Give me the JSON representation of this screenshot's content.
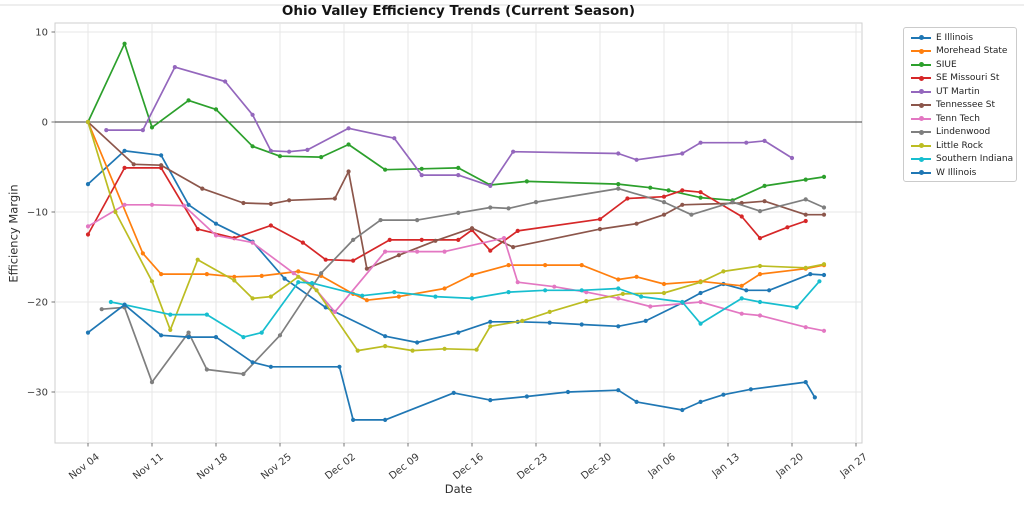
{
  "chart_data": {
    "type": "line",
    "title": "Ohio Valley Efficiency Trends (Current Season)",
    "xlabel": "Date",
    "ylabel": "Efficiency Margin",
    "grid": true,
    "zero_line": true,
    "legend_position": "outside-right",
    "x_axis": {
      "unit": "days_since_Nov_04",
      "tick_days": [
        0,
        7,
        14,
        21,
        28,
        35,
        42,
        49,
        56,
        63,
        70,
        77,
        84
      ],
      "tick_labels": [
        "Nov 04",
        "Nov 11",
        "Nov 18",
        "Nov 25",
        "Dec 02",
        "Dec 09",
        "Dec 16",
        "Dec 23",
        "Dec 30",
        "Jan 06",
        "Jan 13",
        "Jan 20",
        "Jan 27"
      ],
      "range_days": [
        -3.6,
        84.8
      ]
    },
    "y_axis": {
      "ticks": [
        10,
        0,
        -10,
        -20,
        -30
      ],
      "tick_labels": [
        "10",
        "0",
        "−10",
        "−20",
        "−30"
      ],
      "range": [
        -35.7,
        11
      ]
    },
    "series": [
      {
        "name": "E Illinois",
        "color": "#1f77b4",
        "points": [
          [
            0,
            -6.9
          ],
          [
            4,
            -3.2
          ],
          [
            8,
            -3.7
          ],
          [
            11,
            -9.2
          ],
          [
            14,
            -11.3
          ],
          [
            18,
            -13.3
          ],
          [
            21.5,
            -17.4
          ],
          [
            26,
            -20.6
          ],
          [
            32.5,
            -23.8
          ],
          [
            36,
            -24.5
          ],
          [
            40.5,
            -23.4
          ],
          [
            44,
            -22.2
          ],
          [
            47,
            -22.2
          ],
          [
            50.5,
            -22.3
          ],
          [
            54,
            -22.5
          ],
          [
            58,
            -22.7
          ],
          [
            61,
            -22.1
          ],
          [
            65,
            -20.1
          ],
          [
            67,
            -19.0
          ],
          [
            69.5,
            -18.0
          ],
          [
            72,
            -18.7
          ],
          [
            74.5,
            -18.7
          ],
          [
            79,
            -16.9
          ],
          [
            80.5,
            -17.0
          ]
        ]
      },
      {
        "name": "Morehead State",
        "color": "#ff7f0e",
        "points": [
          [
            0,
            0
          ],
          [
            6,
            -14.6
          ],
          [
            8,
            -16.9
          ],
          [
            13,
            -16.9
          ],
          [
            16,
            -17.2
          ],
          [
            19,
            -17.1
          ],
          [
            23,
            -16.6
          ],
          [
            25.5,
            -17.1
          ],
          [
            29,
            -19.1
          ],
          [
            30.5,
            -19.8
          ],
          [
            34,
            -19.4
          ],
          [
            39,
            -18.5
          ],
          [
            42,
            -17.0
          ],
          [
            46,
            -15.9
          ],
          [
            50,
            -15.9
          ],
          [
            54,
            -15.9
          ],
          [
            58,
            -17.5
          ],
          [
            60,
            -17.2
          ],
          [
            63,
            -18.0
          ],
          [
            67,
            -17.7
          ],
          [
            71.5,
            -18.2
          ],
          [
            73.5,
            -16.9
          ],
          [
            78.5,
            -16.3
          ],
          [
            80.5,
            -15.9
          ]
        ]
      },
      {
        "name": "SIUE",
        "color": "#2ca02c",
        "points": [
          [
            0,
            0
          ],
          [
            4,
            8.7
          ],
          [
            7,
            -0.6
          ],
          [
            11,
            2.4
          ],
          [
            14,
            1.4
          ],
          [
            18,
            -2.7
          ],
          [
            21,
            -3.8
          ],
          [
            25.5,
            -3.9
          ],
          [
            28.5,
            -2.5
          ],
          [
            32.5,
            -5.3
          ],
          [
            36.5,
            -5.2
          ],
          [
            40.5,
            -5.1
          ],
          [
            44,
            -7.0
          ],
          [
            48,
            -6.6
          ],
          [
            58,
            -6.9
          ],
          [
            61.5,
            -7.3
          ],
          [
            63.5,
            -7.6
          ],
          [
            67,
            -8.4
          ],
          [
            70.5,
            -8.7
          ],
          [
            74,
            -7.1
          ],
          [
            78.5,
            -6.4
          ],
          [
            80.5,
            -6.1
          ]
        ]
      },
      {
        "name": "SE Missouri St",
        "color": "#d62728",
        "points": [
          [
            0,
            -12.5
          ],
          [
            4,
            -5.1
          ],
          [
            8,
            -5.1
          ],
          [
            12,
            -11.9
          ],
          [
            16,
            -12.9
          ],
          [
            20,
            -11.5
          ],
          [
            23.5,
            -13.4
          ],
          [
            26,
            -15.3
          ],
          [
            29,
            -15.4
          ],
          [
            33,
            -13.1
          ],
          [
            36.5,
            -13.1
          ],
          [
            40.5,
            -13.1
          ],
          [
            42,
            -12.0
          ],
          [
            44,
            -14.3
          ],
          [
            47,
            -12.1
          ],
          [
            56,
            -10.8
          ],
          [
            59,
            -8.5
          ],
          [
            63,
            -8.3
          ],
          [
            65,
            -7.6
          ],
          [
            67,
            -7.8
          ],
          [
            71.5,
            -10.5
          ],
          [
            73.5,
            -12.9
          ],
          [
            76.5,
            -11.7
          ],
          [
            78.5,
            -11.0
          ]
        ]
      },
      {
        "name": "UT Martin",
        "color": "#9467bd",
        "points": [
          [
            2,
            -0.9
          ],
          [
            6,
            -0.9
          ],
          [
            9.5,
            6.1
          ],
          [
            15,
            4.5
          ],
          [
            18,
            0.8
          ],
          [
            20,
            -3.2
          ],
          [
            22,
            -3.3
          ],
          [
            24,
            -3.1
          ],
          [
            28.5,
            -0.7
          ],
          [
            33.5,
            -1.8
          ],
          [
            36.5,
            -5.9
          ],
          [
            40.5,
            -5.9
          ],
          [
            44,
            -7.1
          ],
          [
            46.5,
            -3.3
          ],
          [
            58,
            -3.5
          ],
          [
            60,
            -4.2
          ],
          [
            65,
            -3.5
          ],
          [
            67,
            -2.3
          ],
          [
            72,
            -2.3
          ],
          [
            74,
            -2.1
          ],
          [
            77,
            -4.0
          ]
        ]
      },
      {
        "name": "Tennessee St",
        "color": "#8c564b",
        "points": [
          [
            0,
            0
          ],
          [
            5,
            -4.7
          ],
          [
            8,
            -4.8
          ],
          [
            12.5,
            -7.4
          ],
          [
            17,
            -9.0
          ],
          [
            20,
            -9.1
          ],
          [
            22,
            -8.7
          ],
          [
            27,
            -8.5
          ],
          [
            28.5,
            -5.5
          ],
          [
            30.5,
            -16.3
          ],
          [
            34,
            -14.8
          ],
          [
            38,
            -13.2
          ],
          [
            42,
            -11.8
          ],
          [
            46.5,
            -13.9
          ],
          [
            56,
            -11.9
          ],
          [
            60,
            -11.3
          ],
          [
            63,
            -10.3
          ],
          [
            65,
            -9.2
          ],
          [
            71.5,
            -9.0
          ],
          [
            74,
            -8.8
          ],
          [
            78.5,
            -10.3
          ],
          [
            80.5,
            -10.3
          ]
        ]
      },
      {
        "name": "Tenn Tech",
        "color": "#e377c2",
        "points": [
          [
            0,
            -11.6
          ],
          [
            4,
            -9.2
          ],
          [
            7,
            -9.2
          ],
          [
            10.5,
            -9.3
          ],
          [
            14,
            -12.6
          ],
          [
            18,
            -13.4
          ],
          [
            22.5,
            -16.8
          ],
          [
            24.5,
            -18.1
          ],
          [
            27,
            -21.1
          ],
          [
            32.5,
            -14.4
          ],
          [
            36,
            -14.4
          ],
          [
            39,
            -14.4
          ],
          [
            45.5,
            -12.9
          ],
          [
            47,
            -17.8
          ],
          [
            51,
            -18.3
          ],
          [
            54.5,
            -18.9
          ],
          [
            58,
            -19.6
          ],
          [
            61.5,
            -20.5
          ],
          [
            67,
            -20.0
          ],
          [
            71.5,
            -21.3
          ],
          [
            73.5,
            -21.5
          ],
          [
            78.5,
            -22.8
          ],
          [
            80.5,
            -23.2
          ]
        ]
      },
      {
        "name": "Lindenwood",
        "color": "#7f7f7f",
        "points": [
          [
            1.5,
            -20.8
          ],
          [
            4,
            -20.6
          ],
          [
            7,
            -28.9
          ],
          [
            11,
            -23.4
          ],
          [
            13,
            -27.5
          ],
          [
            17,
            -28.0
          ],
          [
            21,
            -23.7
          ],
          [
            25.5,
            -16.8
          ],
          [
            29,
            -13.1
          ],
          [
            32,
            -10.9
          ],
          [
            36,
            -10.9
          ],
          [
            40.5,
            -10.1
          ],
          [
            44,
            -9.5
          ],
          [
            46,
            -9.6
          ],
          [
            49,
            -8.9
          ],
          [
            58,
            -7.4
          ],
          [
            63,
            -8.9
          ],
          [
            66,
            -10.3
          ],
          [
            70.5,
            -8.9
          ],
          [
            73.5,
            -9.9
          ],
          [
            78.5,
            -8.6
          ],
          [
            80.5,
            -9.5
          ]
        ]
      },
      {
        "name": "Little Rock",
        "color": "#bcbd22",
        "points": [
          [
            0,
            0
          ],
          [
            3,
            -10.0
          ],
          [
            7,
            -17.7
          ],
          [
            9,
            -23.1
          ],
          [
            12,
            -15.3
          ],
          [
            16,
            -17.6
          ],
          [
            18,
            -19.6
          ],
          [
            20,
            -19.4
          ],
          [
            23,
            -17.2
          ],
          [
            25,
            -18.7
          ],
          [
            29.5,
            -25.4
          ],
          [
            32.5,
            -24.9
          ],
          [
            35.5,
            -25.4
          ],
          [
            39,
            -25.2
          ],
          [
            42.5,
            -25.3
          ],
          [
            44,
            -22.7
          ],
          [
            47.5,
            -22.1
          ],
          [
            50.5,
            -21.1
          ],
          [
            54.5,
            -19.9
          ],
          [
            58.5,
            -19.1
          ],
          [
            63,
            -19.0
          ],
          [
            67,
            -17.8
          ],
          [
            69.5,
            -16.6
          ],
          [
            73.5,
            -16.0
          ],
          [
            78.5,
            -16.2
          ],
          [
            80.5,
            -15.8
          ]
        ]
      },
      {
        "name": "Southern Indiana",
        "color": "#17becf",
        "points": [
          [
            2.5,
            -20.0
          ],
          [
            4,
            -20.3
          ],
          [
            9,
            -21.4
          ],
          [
            13,
            -21.4
          ],
          [
            17,
            -23.9
          ],
          [
            19,
            -23.4
          ],
          [
            23,
            -17.8
          ],
          [
            24.5,
            -17.9
          ],
          [
            30,
            -19.3
          ],
          [
            33.5,
            -18.9
          ],
          [
            38,
            -19.4
          ],
          [
            42,
            -19.6
          ],
          [
            46,
            -18.9
          ],
          [
            50,
            -18.7
          ],
          [
            54,
            -18.7
          ],
          [
            58,
            -18.5
          ],
          [
            60.5,
            -19.4
          ],
          [
            65,
            -20.0
          ],
          [
            67,
            -22.4
          ],
          [
            71.5,
            -19.6
          ],
          [
            73.5,
            -20.0
          ],
          [
            77.5,
            -20.6
          ],
          [
            80,
            -17.7
          ]
        ]
      },
      {
        "name": "W Illinois",
        "color": "#1f77b4",
        "points": [
          [
            0,
            -23.4
          ],
          [
            4,
            -20.3
          ],
          [
            8,
            -23.7
          ],
          [
            11,
            -23.9
          ],
          [
            14,
            -23.9
          ],
          [
            18,
            -26.7
          ],
          [
            20,
            -27.2
          ],
          [
            27.5,
            -27.2
          ],
          [
            29,
            -33.1
          ],
          [
            32.5,
            -33.1
          ],
          [
            40,
            -30.1
          ],
          [
            44,
            -30.9
          ],
          [
            48,
            -30.5
          ],
          [
            52.5,
            -30.0
          ],
          [
            58,
            -29.8
          ],
          [
            60,
            -31.1
          ],
          [
            65,
            -32.0
          ],
          [
            67,
            -31.1
          ],
          [
            69.5,
            -30.3
          ],
          [
            72.5,
            -29.7
          ],
          [
            78.5,
            -28.9
          ],
          [
            79.5,
            -30.6
          ]
        ]
      }
    ]
  },
  "style": {
    "grid_color": "#e7e7e7",
    "spine_color": "#cfcfcf",
    "zero_line_color": "#3f3f3f",
    "tick_color": "#555555",
    "tick_label_color": "#3a3a3a",
    "top_rule_color": "#dcdcdc"
  }
}
